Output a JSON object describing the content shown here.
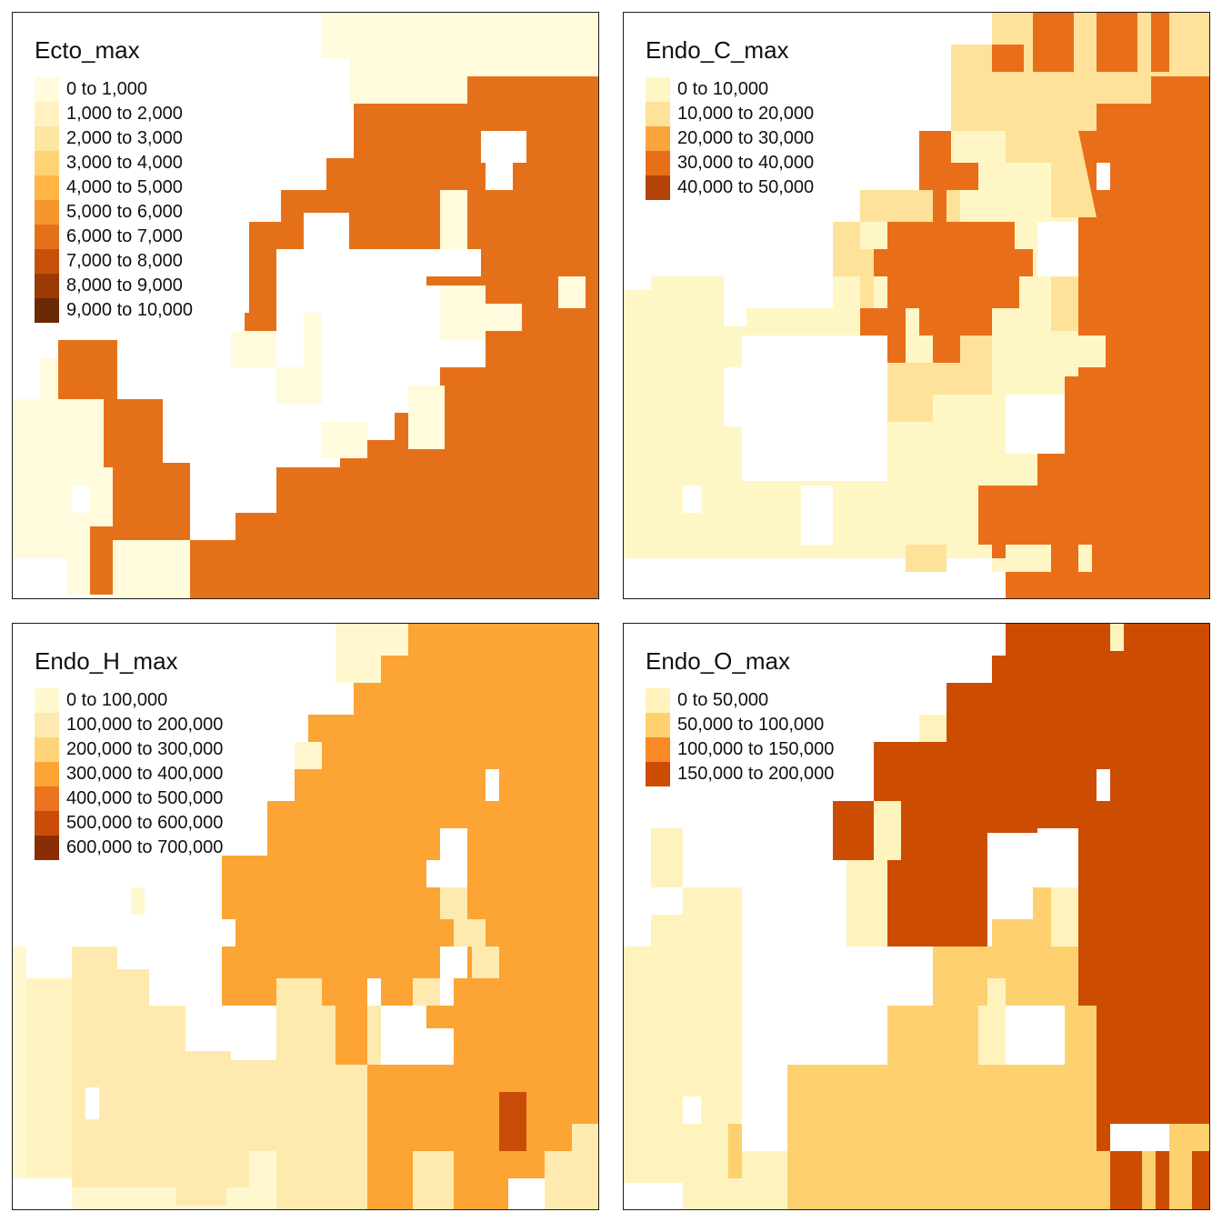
{
  "maps": [
    {
      "title": "Ecto_max",
      "legend": [
        {
          "label": "0 to 1,000",
          "color": "#fffbdc"
        },
        {
          "label": "1,000 to 2,000",
          "color": "#fff1c2"
        },
        {
          "label": "2,000 to 3,000",
          "color": "#fee6a3"
        },
        {
          "label": "3,000 to 4,000",
          "color": "#fed374"
        },
        {
          "label": "4,000 to 5,000",
          "color": "#feb546"
        },
        {
          "label": "5,000 to 6,000",
          "color": "#f6962c"
        },
        {
          "label": "6,000 to 7,000",
          "color": "#e4711a"
        },
        {
          "label": "7,000 to 8,000",
          "color": "#c6500a"
        },
        {
          "label": "8,000 to 9,000",
          "color": "#9b3a06"
        },
        {
          "label": "9,000 to 10,000",
          "color": "#6b2a06"
        }
      ]
    },
    {
      "title": "Endo_C_max",
      "legend": [
        {
          "label": "0 to 10,000",
          "color": "#fff6c5"
        },
        {
          "label": "10,000 to 20,000",
          "color": "#fee29a"
        },
        {
          "label": "20,000 to 30,000",
          "color": "#fba43c"
        },
        {
          "label": "30,000 to 40,000",
          "color": "#e96e1a"
        },
        {
          "label": "40,000 to 50,000",
          "color": "#b4430a"
        }
      ]
    },
    {
      "title": "Endo_H_max",
      "legend": [
        {
          "label": "0 to 100,000",
          "color": "#fff8cf"
        },
        {
          "label": "100,000 to 200,000",
          "color": "#feeaae"
        },
        {
          "label": "200,000 to 300,000",
          "color": "#fed479"
        },
        {
          "label": "300,000 to 400,000",
          "color": "#fca434"
        },
        {
          "label": "400,000 to 500,000",
          "color": "#ec7421"
        },
        {
          "label": "500,000 to 600,000",
          "color": "#c94d09"
        },
        {
          "label": "600,000 to 700,000",
          "color": "#8a2d05"
        }
      ]
    },
    {
      "title": "Endo_O_max",
      "legend": [
        {
          "label": "0 to 50,000",
          "color": "#fff3bd"
        },
        {
          "label": "50,000 to 100,000",
          "color": "#fed06f"
        },
        {
          "label": "100,000 to 150,000",
          "color": "#f98a25"
        },
        {
          "label": "150,000 to 200,000",
          "color": "#cc4c02"
        }
      ]
    }
  ]
}
